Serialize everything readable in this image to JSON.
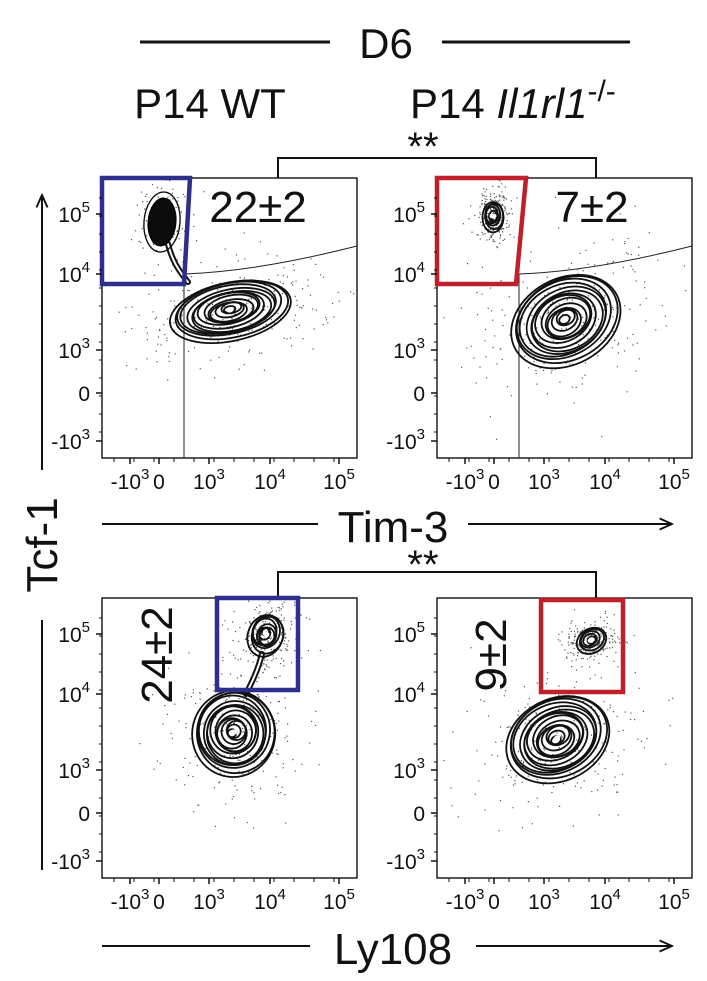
{
  "header": {
    "timepoint": "D6",
    "left_condition": "P14 WT",
    "right_condition_prefix": "P14 ",
    "right_condition_gene": "Il1rl1",
    "right_condition_sup": "-/-"
  },
  "axes": {
    "y_label": "Tcf-1",
    "x_label_top": "Tim-3",
    "x_label_bottom": "Ly108"
  },
  "ticks": {
    "y": [
      {
        "base": "10",
        "exp": "5"
      },
      {
        "base": "10",
        "exp": "4"
      },
      {
        "base": "10",
        "exp": "3"
      },
      {
        "base": "0",
        "exp": ""
      },
      {
        "base": "-10",
        "exp": "3"
      }
    ],
    "x": [
      {
        "base": "-10",
        "exp": "3"
      },
      {
        "base": "0",
        "exp": ""
      },
      {
        "base": "10",
        "exp": "3"
      },
      {
        "base": "10",
        "exp": "4"
      },
      {
        "base": "10",
        "exp": "5"
      }
    ]
  },
  "significance": {
    "top": "**",
    "bottom": "**"
  },
  "colors": {
    "wt_gate": "#2e2e8c",
    "ko_gate": "#c0202a",
    "ink": "#111111"
  },
  "chart_data": {
    "type": "scatter",
    "title": "D6",
    "ylabel": "Tcf-1",
    "scale": "biexponential",
    "y_tick_values": [
      100000,
      10000,
      1000,
      0,
      -1000
    ],
    "x_tick_values": [
      -1000,
      0,
      1000,
      10000,
      100000
    ],
    "panels": [
      {
        "name": "P14 WT",
        "xlabel": "Tim-3",
        "gate": "Tcf-1+ Tim-3-",
        "percent_label": "22±2",
        "percent_mean": 22,
        "percent_sem": 2
      },
      {
        "name": "P14 Il1rl1-/-",
        "xlabel": "Tim-3",
        "gate": "Tcf-1+ Tim-3-",
        "percent_label": "7±2",
        "percent_mean": 7,
        "percent_sem": 2
      },
      {
        "name": "P14 WT",
        "xlabel": "Ly108",
        "gate": "Tcf-1+ Ly108+",
        "percent_label": "24±2",
        "percent_mean": 24,
        "percent_sem": 2
      },
      {
        "name": "P14 Il1rl1-/-",
        "xlabel": "Ly108",
        "gate": "Tcf-1+ Ly108+",
        "percent_label": "9±2",
        "percent_mean": 9,
        "percent_sem": 2
      }
    ]
  }
}
